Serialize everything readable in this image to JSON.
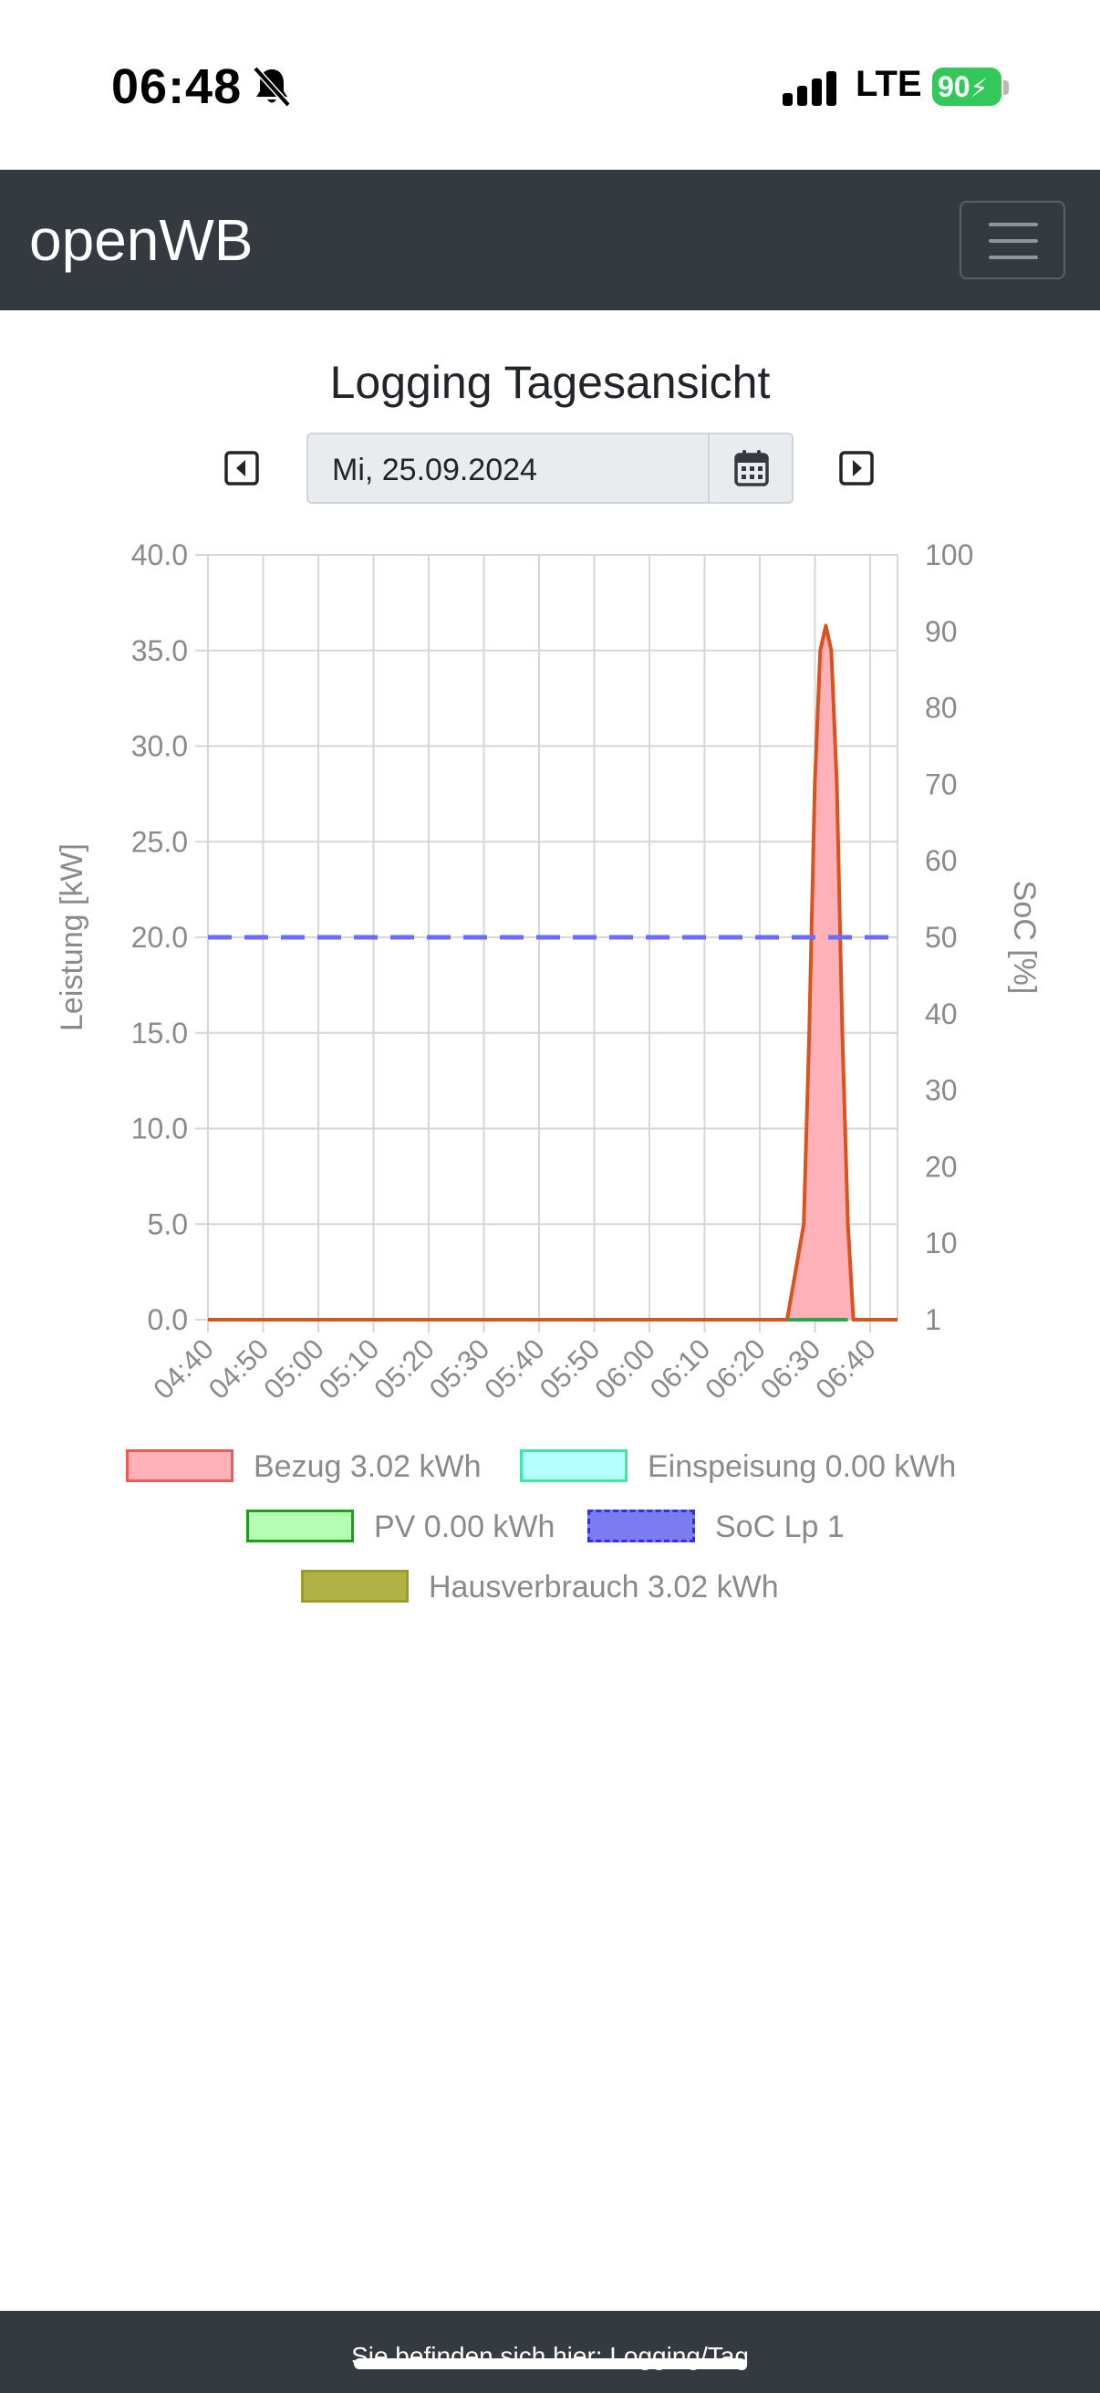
{
  "status": {
    "time": "06:48",
    "network": "LTE",
    "battery": "90"
  },
  "navbar": {
    "brand": "openWB",
    "menu_icon": "hamburger-icon"
  },
  "page": {
    "title": "Logging Tagesansicht"
  },
  "date_selector": {
    "value": "Mi, 25.09.2024",
    "prev_icon": "caret-left-square-icon",
    "next_icon": "caret-right-square-icon",
    "calendar_icon": "calendar-icon"
  },
  "chart_data": {
    "type": "area",
    "x_labels": [
      "04:40",
      "04:50",
      "05:00",
      "05:10",
      "05:20",
      "05:30",
      "05:40",
      "05:50",
      "06:00",
      "06:10",
      "06:20",
      "06:30",
      "06:40"
    ],
    "ylabel": "Leistung [kW]",
    "y2label": "SoC [%]",
    "y_ticks": [
      "40.0",
      "35.0",
      "30.0",
      "25.0",
      "20.0",
      "15.0",
      "10.0",
      "5.0",
      "0.0"
    ],
    "y2_ticks": [
      "100",
      "90",
      "80",
      "70",
      "60",
      "50",
      "40",
      "30",
      "20",
      "10",
      "1"
    ],
    "ylim": [
      0,
      40
    ],
    "y2lim": [
      0,
      100
    ],
    "grid": true,
    "legend_position": "bottom",
    "series": [
      {
        "name": "Bezug",
        "axis": "left",
        "color": "#d9531e",
        "fill": "#ffb1b9",
        "points": [
          [
            0,
            0
          ],
          [
            105,
            0
          ],
          [
            108,
            5
          ],
          [
            109,
            15
          ],
          [
            110,
            28
          ],
          [
            111,
            35
          ],
          [
            112,
            36.3
          ],
          [
            113,
            35
          ],
          [
            114,
            28
          ],
          [
            115,
            15
          ],
          [
            116,
            5
          ],
          [
            117,
            0
          ],
          [
            125,
            0
          ]
        ]
      },
      {
        "name": "PV",
        "axis": "left",
        "color": "#28a745",
        "fill": "#b4ffb4",
        "points": [
          [
            105,
            0
          ],
          [
            116,
            0
          ]
        ]
      },
      {
        "name": "SoC Lp 1",
        "axis": "right",
        "color": "#6b6bff",
        "dashed": true,
        "points": [
          [
            0,
            50
          ],
          [
            125,
            50
          ]
        ]
      }
    ],
    "x_range": [
      0,
      125
    ]
  },
  "legend": [
    {
      "label": "Bezug 3.02 kWh",
      "fill": "#ffb1b9",
      "border": "#f0595b",
      "dashed": false
    },
    {
      "label": "Einspeisung 0.00 kWh",
      "fill": "#b4ffff",
      "border": "#3ee6a0",
      "dashed": false
    },
    {
      "label": "PV 0.00 kWh",
      "fill": "#b4ffb4",
      "border": "#1c9e1c",
      "dashed": false
    },
    {
      "label": "SoC Lp 1",
      "fill": "#7b7bf2",
      "border": "#3030e0",
      "dashed": true
    },
    {
      "label": "Hausverbrauch 3.02 kWh",
      "fill": "#b0b243",
      "border": "#9a9c2a",
      "dashed": false
    }
  ],
  "footer": {
    "text": "Sie befinden sich hier: Logging/Tag"
  }
}
